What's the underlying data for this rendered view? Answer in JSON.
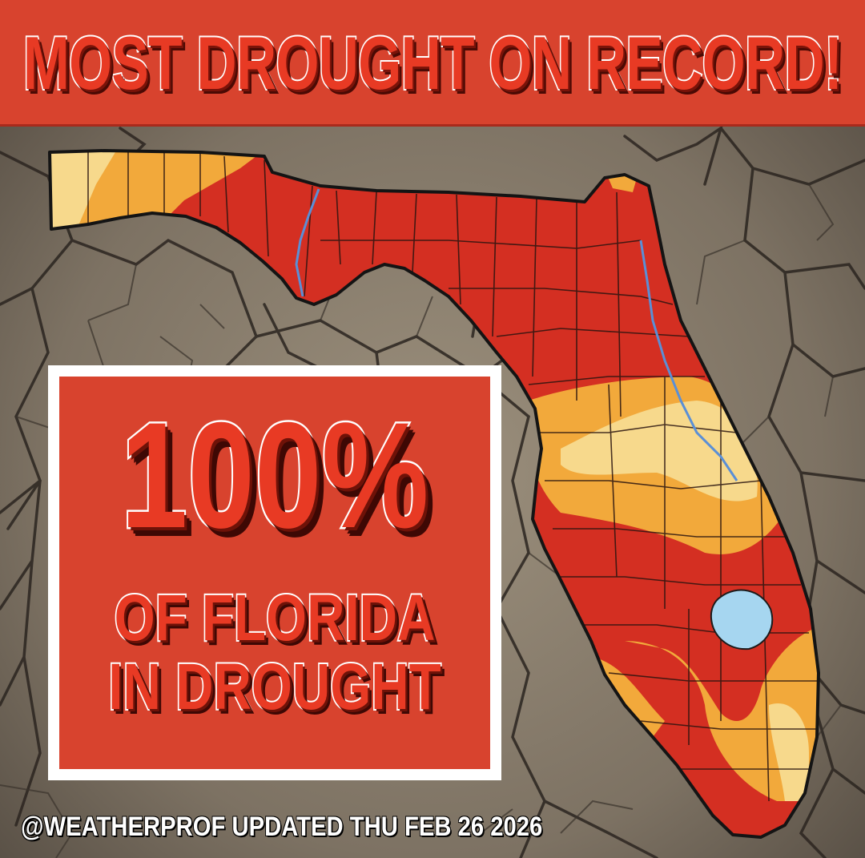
{
  "header": {
    "title": "MOST DROUGHT ON RECORD!"
  },
  "callout": {
    "percent": "100%",
    "line1": "OF FLORIDA",
    "line2": "IN DROUGHT"
  },
  "footer": {
    "credit": "@WEATHERPROF UPDATED THU FEB 26 2026"
  },
  "map": {
    "region": "Florida",
    "drought_levels": [
      {
        "category": "severe-extreme",
        "color": "#d42f22"
      },
      {
        "category": "moderate",
        "color": "#f2a93b"
      },
      {
        "category": "abnormally-dry",
        "color": "#f7d98c"
      }
    ],
    "water_color": "#a6d6f0",
    "river_color": "#5a8fd6",
    "state_outline_color": "#1b1b1b",
    "background_texture": "cracked-earth"
  }
}
